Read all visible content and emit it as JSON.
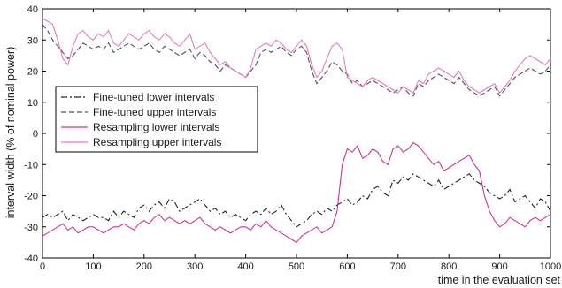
{
  "chart_data": {
    "type": "line",
    "xlabel": "time in the evaluation set",
    "ylabel": "interval width (% of nominal power)",
    "xlim": [
      0,
      1000
    ],
    "ylim": [
      -40,
      40
    ],
    "xticks": [
      0,
      100,
      200,
      300,
      400,
      500,
      600,
      700,
      800,
      900,
      1000
    ],
    "yticks": [
      -40,
      -30,
      -20,
      -10,
      0,
      10,
      20,
      30,
      40
    ],
    "grid": false,
    "legend_position": "middle-left",
    "series": [
      {
        "name": "Fine-tuned lower intervals",
        "color": "#222222",
        "dash": "dash-dot",
        "x": [
          0,
          10,
          20,
          30,
          40,
          50,
          60,
          70,
          80,
          90,
          100,
          110,
          120,
          130,
          140,
          150,
          160,
          170,
          180,
          190,
          200,
          210,
          220,
          230,
          240,
          250,
          260,
          270,
          280,
          290,
          300,
          310,
          320,
          330,
          340,
          350,
          360,
          370,
          380,
          390,
          400,
          410,
          420,
          430,
          440,
          450,
          460,
          470,
          480,
          490,
          500,
          510,
          520,
          530,
          540,
          550,
          560,
          570,
          580,
          590,
          600,
          610,
          620,
          630,
          640,
          650,
          660,
          670,
          680,
          690,
          700,
          710,
          720,
          730,
          740,
          750,
          760,
          770,
          780,
          790,
          800,
          810,
          820,
          830,
          840,
          850,
          860,
          870,
          880,
          890,
          900,
          910,
          920,
          930,
          940,
          950,
          960,
          970,
          980,
          990,
          1000
        ],
        "values": [
          -27,
          -26,
          -27,
          -26,
          -25,
          -28,
          -26,
          -27,
          -28,
          -27,
          -26,
          -27,
          -27,
          -28,
          -25,
          -27,
          -25,
          -26,
          -27,
          -24,
          -23,
          -25,
          -23,
          -22,
          -24,
          -21,
          -22,
          -25,
          -24,
          -23,
          -22,
          -21,
          -23,
          -25,
          -24,
          -26,
          -25,
          -27,
          -26,
          -27,
          -28,
          -26,
          -25,
          -26,
          -24,
          -26,
          -25,
          -23,
          -26,
          -28,
          -30,
          -29,
          -28,
          -26,
          -25,
          -26,
          -24,
          -25,
          -23,
          -22,
          -21,
          -23,
          -22,
          -20,
          -21,
          -18,
          -17,
          -19,
          -20,
          -15,
          -16,
          -14,
          -15,
          -13,
          -14,
          -15,
          -16,
          -17,
          -15,
          -18,
          -17,
          -16,
          -15,
          -14,
          -13,
          -15,
          -16,
          -17,
          -19,
          -20,
          -21,
          -20,
          -18,
          -22,
          -21,
          -20,
          -22,
          -24,
          -21,
          -22,
          -25
        ]
      },
      {
        "name": "Fine-tuned upper intervals",
        "color": "#555555",
        "dash": "dashed",
        "x": [
          0,
          10,
          20,
          30,
          40,
          50,
          60,
          70,
          80,
          90,
          100,
          110,
          120,
          130,
          140,
          150,
          160,
          170,
          180,
          190,
          200,
          210,
          220,
          230,
          240,
          250,
          260,
          270,
          280,
          290,
          300,
          310,
          320,
          330,
          340,
          350,
          360,
          370,
          380,
          390,
          400,
          410,
          420,
          430,
          440,
          450,
          460,
          470,
          480,
          490,
          500,
          510,
          520,
          530,
          540,
          550,
          560,
          570,
          580,
          590,
          600,
          610,
          620,
          630,
          640,
          650,
          660,
          670,
          680,
          690,
          700,
          710,
          720,
          730,
          740,
          750,
          760,
          770,
          780,
          790,
          800,
          810,
          820,
          830,
          840,
          850,
          860,
          870,
          880,
          890,
          900,
          910,
          920,
          930,
          940,
          950,
          960,
          970,
          980,
          990,
          1000
        ],
        "values": [
          35,
          33,
          30,
          28,
          26,
          24,
          25,
          27,
          29,
          28,
          27,
          28,
          27,
          29,
          26,
          27,
          28,
          29,
          28,
          27,
          28,
          29,
          27,
          26,
          28,
          27,
          26,
          25,
          26,
          27,
          24,
          26,
          25,
          23,
          22,
          20,
          22,
          21,
          20,
          19,
          18,
          20,
          22,
          26,
          27,
          26,
          27,
          28,
          26,
          25,
          27,
          28,
          26,
          20,
          16,
          18,
          20,
          23,
          22,
          20,
          19,
          16,
          17,
          15,
          16,
          17,
          16,
          15,
          14,
          13,
          14,
          15,
          13,
          12,
          16,
          15,
          17,
          18,
          19,
          18,
          17,
          16,
          18,
          16,
          14,
          13,
          12,
          13,
          14,
          15,
          12,
          14,
          16,
          18,
          19,
          20,
          21,
          20,
          19,
          20,
          22
        ]
      },
      {
        "name": "Resampling lower intervals",
        "color": "#cc3399",
        "dash": "solid",
        "x": [
          0,
          10,
          20,
          30,
          40,
          50,
          60,
          70,
          80,
          90,
          100,
          110,
          120,
          130,
          140,
          150,
          160,
          170,
          180,
          190,
          200,
          210,
          220,
          230,
          240,
          250,
          260,
          270,
          280,
          290,
          300,
          310,
          320,
          330,
          340,
          350,
          360,
          370,
          380,
          390,
          400,
          410,
          420,
          430,
          440,
          450,
          460,
          470,
          480,
          490,
          500,
          510,
          520,
          530,
          540,
          550,
          560,
          570,
          580,
          590,
          600,
          610,
          620,
          630,
          640,
          650,
          660,
          670,
          680,
          690,
          700,
          710,
          720,
          730,
          740,
          750,
          760,
          770,
          780,
          790,
          800,
          810,
          820,
          830,
          840,
          850,
          860,
          870,
          880,
          890,
          900,
          910,
          920,
          930,
          940,
          950,
          960,
          970,
          980,
          990,
          1000
        ],
        "values": [
          -33,
          -32,
          -31,
          -30,
          -29,
          -31,
          -30,
          -32,
          -31,
          -30,
          -30,
          -31,
          -32,
          -31,
          -30,
          -30,
          -29,
          -30,
          -31,
          -29,
          -28,
          -29,
          -27,
          -26,
          -28,
          -27,
          -28,
          -29,
          -28,
          -29,
          -28,
          -27,
          -29,
          -30,
          -31,
          -30,
          -31,
          -32,
          -31,
          -30,
          -30,
          -31,
          -29,
          -30,
          -28,
          -30,
          -31,
          -32,
          -33,
          -34,
          -35,
          -33,
          -32,
          -31,
          -30,
          -32,
          -31,
          -30,
          -25,
          -10,
          -5,
          -6,
          -4,
          -8,
          -7,
          -5,
          -6,
          -9,
          -10,
          -5,
          -4,
          -6,
          -5,
          -3,
          -4,
          -6,
          -8,
          -10,
          -9,
          -12,
          -11,
          -10,
          -9,
          -8,
          -7,
          -10,
          -12,
          -20,
          -25,
          -28,
          -30,
          -29,
          -27,
          -28,
          -29,
          -30,
          -28,
          -27,
          -28,
          -27,
          -26
        ]
      },
      {
        "name": "Resampling upper intervals",
        "color": "#e27bc0",
        "dash": "solid",
        "x": [
          0,
          10,
          20,
          30,
          40,
          50,
          60,
          70,
          80,
          90,
          100,
          110,
          120,
          130,
          140,
          150,
          160,
          170,
          180,
          190,
          200,
          210,
          220,
          230,
          240,
          250,
          260,
          270,
          280,
          290,
          300,
          310,
          320,
          330,
          340,
          350,
          360,
          370,
          380,
          390,
          400,
          410,
          420,
          430,
          440,
          450,
          460,
          470,
          480,
          490,
          500,
          510,
          520,
          530,
          540,
          550,
          560,
          570,
          580,
          590,
          600,
          610,
          620,
          630,
          640,
          650,
          660,
          670,
          680,
          690,
          700,
          710,
          720,
          730,
          740,
          750,
          760,
          770,
          780,
          790,
          800,
          810,
          820,
          830,
          840,
          850,
          860,
          870,
          880,
          890,
          900,
          910,
          920,
          930,
          940,
          950,
          960,
          970,
          980,
          990,
          1000
        ],
        "values": [
          37,
          36,
          35,
          30,
          24,
          22,
          28,
          32,
          33,
          31,
          30,
          32,
          31,
          33,
          29,
          28,
          30,
          32,
          31,
          30,
          32,
          33,
          31,
          30,
          32,
          31,
          29,
          28,
          30,
          32,
          27,
          28,
          29,
          26,
          24,
          22,
          23,
          21,
          20,
          19,
          18,
          21,
          27,
          28,
          29,
          28,
          30,
          29,
          27,
          26,
          28,
          30,
          28,
          22,
          18,
          20,
          24,
          28,
          29,
          27,
          18,
          17,
          16,
          15,
          17,
          18,
          17,
          16,
          15,
          14,
          13,
          15,
          14,
          13,
          17,
          16,
          19,
          20,
          21,
          20,
          19,
          18,
          20,
          17,
          15,
          14,
          13,
          14,
          15,
          16,
          13,
          15,
          17,
          20,
          22,
          24,
          25,
          24,
          23,
          22,
          24
        ]
      }
    ]
  }
}
